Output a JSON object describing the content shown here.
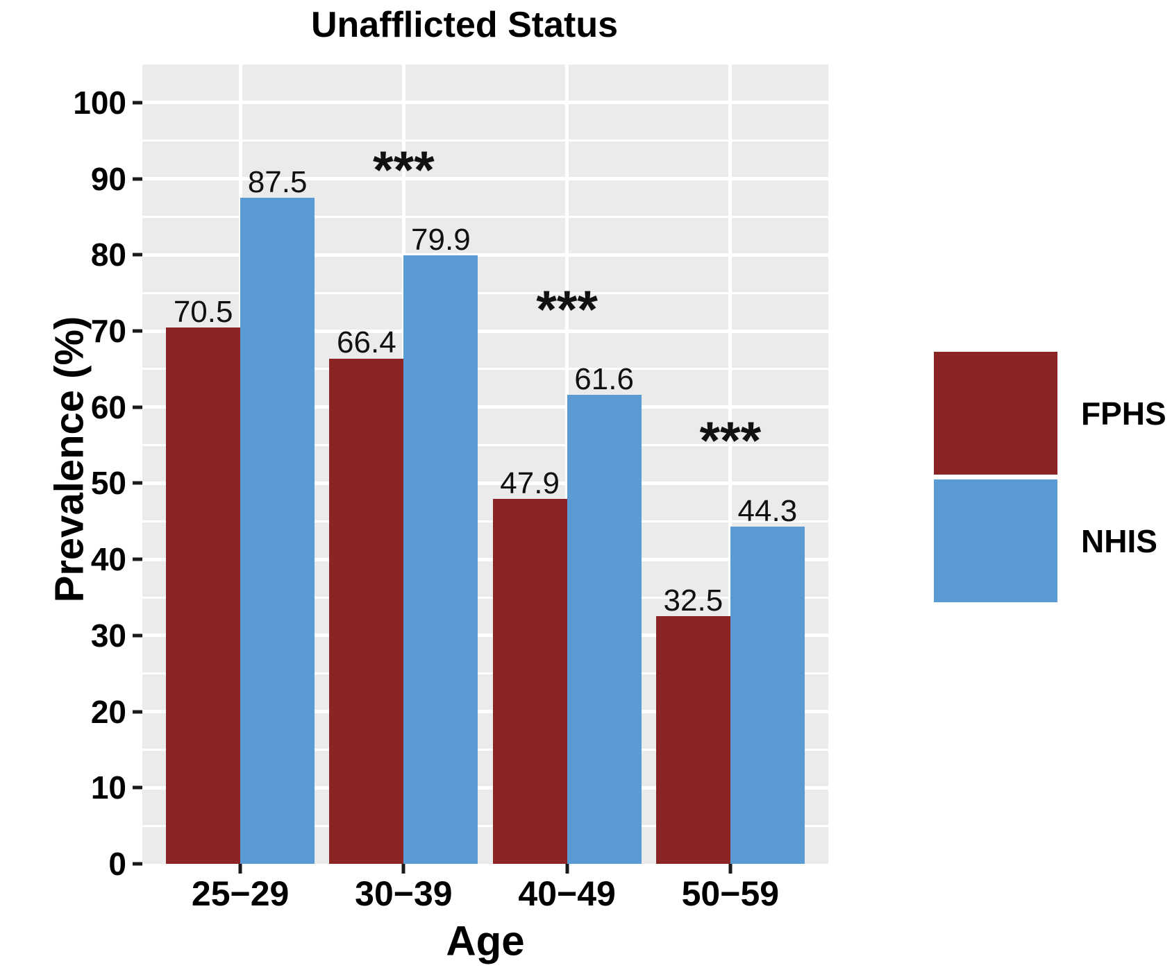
{
  "title": "Unafflicted Status",
  "chart_data": {
    "type": "bar",
    "title": "Unafflicted Status",
    "xlabel": "Age",
    "ylabel": "Prevalence (%)",
    "categories": [
      "25−29",
      "30−39",
      "40−49",
      "50−59"
    ],
    "series": [
      {
        "name": "FPHS",
        "color": "#8B2423",
        "values": [
          70.5,
          66.4,
          47.9,
          32.5
        ]
      },
      {
        "name": "NHIS",
        "color": "#5B9BD5",
        "values": [
          87.5,
          79.9,
          61.6,
          44.3
        ]
      }
    ],
    "value_labels_shown": true,
    "significance_markers": [
      {
        "category": "30−39",
        "label": "***"
      },
      {
        "category": "40−49",
        "label": "***"
      },
      {
        "category": "50−59",
        "label": "***"
      }
    ],
    "ylim": [
      0,
      105
    ],
    "yticks": [
      0,
      10,
      20,
      30,
      40,
      50,
      60,
      70,
      80,
      90,
      100
    ],
    "grid": {
      "horizontal_major": true,
      "horizontal_minor": true,
      "vertical_major_at_categories": true,
      "color": "#ffffff"
    },
    "panel_background": "#EBEBEB",
    "legend_position": "right",
    "bar_layout": "grouped-dodge"
  }
}
